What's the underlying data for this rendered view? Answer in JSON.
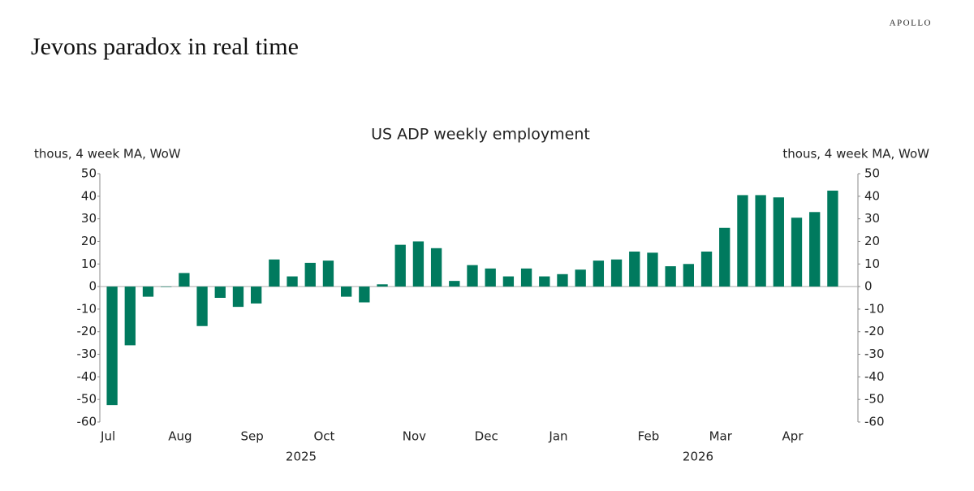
{
  "brand": "APOLLO",
  "heading": "Jevons paradox in real time",
  "chart_data": {
    "type": "bar",
    "title": "US ADP weekly employment",
    "y_label": "thous, 4 week MA, WoW",
    "y2_label": "thous, 4 week MA, WoW",
    "categories": [
      "Jul",
      null,
      null,
      null,
      "Aug",
      null,
      null,
      null,
      "Sep",
      null,
      null,
      null,
      "Oct",
      null,
      null,
      null,
      null,
      "Nov",
      null,
      null,
      null,
      "Dec",
      null,
      null,
      null,
      "Jan",
      null,
      null,
      null,
      null,
      "Feb",
      null,
      null,
      null,
      "Mar",
      null,
      null,
      null,
      "Apr",
      null,
      null
    ],
    "year_labels": [
      "2025",
      "2026"
    ],
    "values": [
      -52.5,
      -26,
      -4.5,
      -0.2,
      6,
      -17.5,
      -5,
      -9,
      -7.5,
      12,
      4.5,
      10.5,
      11.5,
      -4.5,
      -7,
      1,
      18.5,
      20,
      17,
      2.5,
      9.5,
      8,
      4.5,
      8,
      4.5,
      5.5,
      7.5,
      11.5,
      12,
      15.5,
      15,
      9,
      10,
      15.5,
      26,
      40.5,
      40.5,
      39.5,
      30.5,
      33,
      42.5
    ],
    "color": "#007a5e",
    "ylim": [
      -60,
      50
    ],
    "yticks": [
      -60,
      -50,
      -40,
      -30,
      -20,
      -10,
      0,
      10,
      20,
      30,
      40,
      50
    ],
    "y2lim": [
      -60,
      50
    ],
    "y2ticks": [
      -60,
      -50,
      -40,
      -30,
      -20,
      -10,
      0,
      10,
      20,
      30,
      40,
      50
    ]
  }
}
